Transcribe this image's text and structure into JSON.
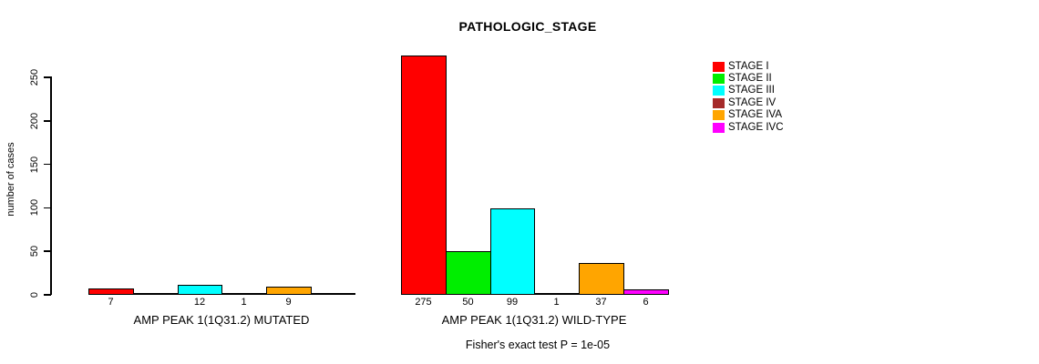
{
  "chart_data": {
    "type": "bar",
    "title": "PATHOLOGIC_STAGE",
    "ylabel": "number of cases",
    "ylim": [
      0,
      275
    ],
    "yticks": [
      0,
      50,
      100,
      150,
      200,
      250
    ],
    "grid": false,
    "legend_position": "right",
    "series_labels": [
      "STAGE I",
      "STAGE II",
      "STAGE III",
      "STAGE IV",
      "STAGE IVA",
      "STAGE IVC"
    ],
    "series_colors": [
      "#FF0000",
      "#00EE00",
      "#00FFFF",
      "#A52A2A",
      "#FFA500",
      "#FF00FF"
    ],
    "groups": [
      {
        "label": "AMP PEAK 1(1Q31.2) MUTATED",
        "values": [
          7,
          0,
          12,
          1,
          9,
          0
        ],
        "bar_labels": [
          "7",
          "",
          "12",
          "1",
          "9",
          ""
        ]
      },
      {
        "label": "AMP PEAK 1(1Q31.2) WILD-TYPE",
        "values": [
          275,
          50,
          99,
          1,
          37,
          6
        ],
        "bar_labels": [
          "275",
          "50",
          "99",
          "1",
          "37",
          "6"
        ]
      }
    ],
    "annotation": "Fisher's exact test P = 1e-05"
  }
}
